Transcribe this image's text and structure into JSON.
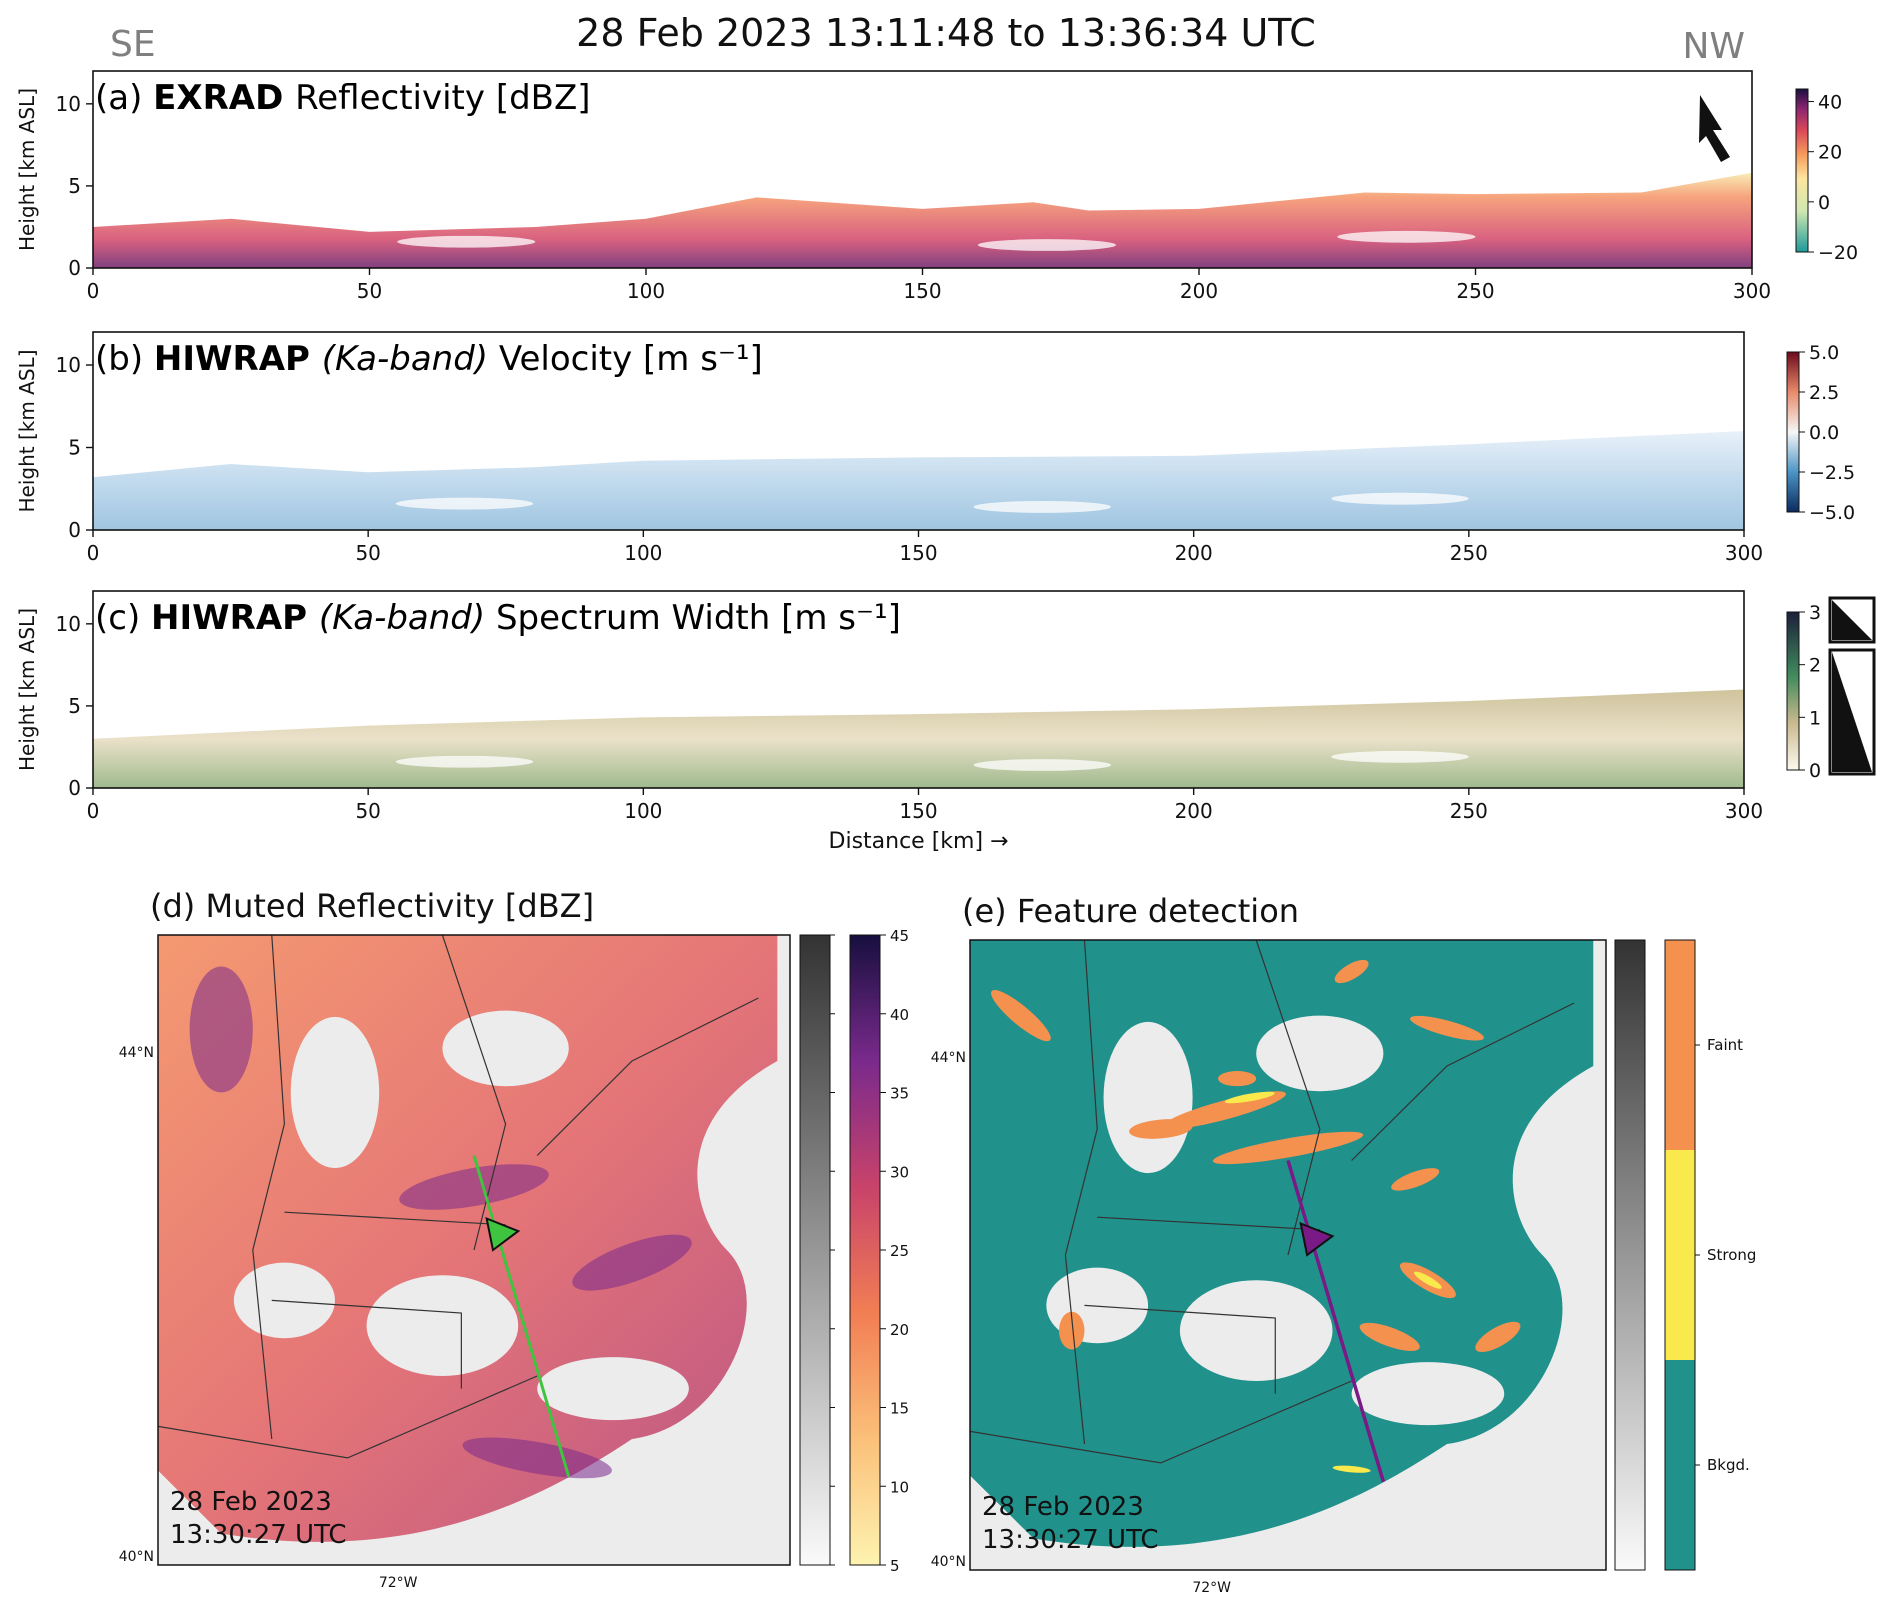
{
  "figure": {
    "title": "28 Feb 2023 13:11:48 to 13:36:34 UTC",
    "left_direction": "SE",
    "right_direction": "NW",
    "colors": {
      "green_track": "#3ec43e",
      "purple_track": "#7a1a86",
      "teal": "#21918c",
      "orange": "#f4914e",
      "yellow": "#f9e94c",
      "land": "#ececec"
    }
  },
  "chart_data": [
    {
      "type": "heatmap",
      "panel": "a",
      "label_prefix": "(a) ",
      "instrument": "EXRAD",
      "band": "",
      "quantity": "Reflectivity [dBZ]",
      "ylabel": "Height [km ASL]",
      "xlabel": "",
      "xlim": [
        0,
        300
      ],
      "ylim": [
        0,
        12
      ],
      "xticks": [
        0,
        50,
        100,
        150,
        200,
        250,
        300
      ],
      "yticks": [
        0,
        5,
        10
      ],
      "colorbar": {
        "ticks": [
          40,
          20,
          0,
          -20
        ],
        "range": [
          -20,
          45
        ],
        "colormap": "magma-like"
      },
      "echo_top_km": [
        [
          0,
          2.5
        ],
        [
          25,
          3
        ],
        [
          50,
          2.2
        ],
        [
          80,
          2.5
        ],
        [
          100,
          3
        ],
        [
          120,
          4.3
        ],
        [
          150,
          3.6
        ],
        [
          170,
          4
        ],
        [
          180,
          3.5
        ],
        [
          200,
          3.6
        ],
        [
          230,
          4.6
        ],
        [
          250,
          4.5
        ],
        [
          280,
          4.6
        ],
        [
          300,
          5.8
        ]
      ]
    },
    {
      "type": "heatmap",
      "panel": "b",
      "label_prefix": "(b) ",
      "instrument": "HIWRAP",
      "band": "(Ka-band)",
      "quantity": "Velocity [m s⁻¹]",
      "ylabel": "Height [km ASL]",
      "xlabel": "",
      "xlim": [
        0,
        300
      ],
      "ylim": [
        0,
        12
      ],
      "xticks": [
        0,
        50,
        100,
        150,
        200,
        250,
        300
      ],
      "yticks": [
        0,
        5,
        10
      ],
      "colorbar": {
        "ticks": [
          "5.0",
          "2.5",
          "0.0",
          "−2.5",
          "−5.0"
        ],
        "range": [
          -5,
          5
        ],
        "colormap": "RdBu"
      },
      "echo_top_km": [
        [
          0,
          3.2
        ],
        [
          25,
          4
        ],
        [
          50,
          3.5
        ],
        [
          80,
          3.8
        ],
        [
          100,
          4.2
        ],
        [
          150,
          4.4
        ],
        [
          200,
          4.5
        ],
        [
          250,
          5.2
        ],
        [
          300,
          6
        ]
      ]
    },
    {
      "type": "heatmap",
      "panel": "c",
      "label_prefix": "(c) ",
      "instrument": "HIWRAP",
      "band": "(Ka-band)",
      "quantity": "Spectrum Width [m s⁻¹]",
      "ylabel": "Height [km ASL]",
      "xlabel": "Distance [km]  →",
      "xlim": [
        0,
        300
      ],
      "ylim": [
        0,
        12
      ],
      "xticks": [
        0,
        50,
        100,
        150,
        200,
        250,
        300
      ],
      "yticks": [
        0,
        5,
        10
      ],
      "colorbar": {
        "ticks": [
          3,
          2,
          1,
          0
        ],
        "range": [
          0,
          3
        ],
        "colormap": "tan-to-green"
      },
      "echo_top_km": [
        [
          0,
          3
        ],
        [
          50,
          3.8
        ],
        [
          100,
          4.3
        ],
        [
          150,
          4.5
        ],
        [
          200,
          4.8
        ],
        [
          250,
          5.3
        ],
        [
          300,
          6
        ]
      ]
    },
    {
      "type": "heatmap",
      "panel": "d",
      "title": "(d) Muted Reflectivity [dBZ]",
      "lat_labels": [
        "44°N",
        "40°N"
      ],
      "lon_labels": [
        "72°W"
      ],
      "timestamp_line1": "28 Feb 2023",
      "timestamp_line2": "13:30:27 UTC",
      "colorbar_ticks": [
        45,
        40,
        35,
        30,
        25,
        20,
        15,
        10,
        5
      ],
      "colorbar_range": [
        5,
        45
      ]
    },
    {
      "type": "heatmap",
      "panel": "e",
      "title": "(e) Feature detection",
      "lat_labels": [
        "44°N",
        "40°N"
      ],
      "lon_labels": [
        "72°W"
      ],
      "timestamp_line1": "28 Feb 2023",
      "timestamp_line2": "13:30:27 UTC",
      "categories": [
        "Faint",
        "Strong",
        "Bkgd."
      ]
    }
  ]
}
